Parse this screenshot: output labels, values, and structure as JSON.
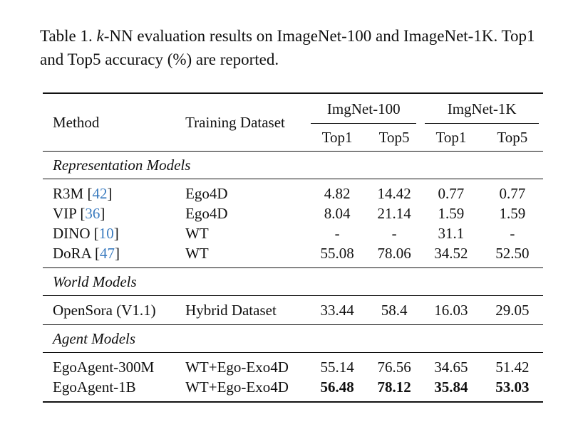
{
  "caption": {
    "prefix": "Table 1. ",
    "k": "k",
    "rest": "-NN evaluation results on ImageNet-100 and ImageNet-1K. Top1 and Top5 accuracy (%) are reported."
  },
  "headers": {
    "method": "Method",
    "training_dataset": "Training Dataset",
    "group1": "ImgNet-100",
    "group2": "ImgNet-1K",
    "top1": "Top1",
    "top5": "Top5"
  },
  "sections": [
    {
      "title": "Representation Models",
      "rows": [
        {
          "method": "R3M",
          "ref": "42",
          "dataset": "Ego4D",
          "v": [
            "4.82",
            "14.42",
            "0.77",
            "0.77"
          ]
        },
        {
          "method": "VIP",
          "ref": "36",
          "dataset": "Ego4D",
          "v": [
            "8.04",
            "21.14",
            "1.59",
            "1.59"
          ]
        },
        {
          "method": "DINO",
          "ref": "10",
          "dataset": "WT",
          "v": [
            "-",
            "-",
            "31.1",
            "-"
          ]
        },
        {
          "method": "DoRA",
          "ref": "47",
          "dataset": "WT",
          "v": [
            "55.08",
            "78.06",
            "34.52",
            "52.50"
          ]
        }
      ]
    },
    {
      "title": "World Models",
      "rows": [
        {
          "method": "OpenSora (V1.1)",
          "ref": "",
          "dataset": "Hybrid Dataset",
          "v": [
            "33.44",
            "58.4",
            "16.03",
            "29.05"
          ]
        }
      ]
    },
    {
      "title": "Agent Models",
      "rows": [
        {
          "method": "EgoAgent-300M",
          "ref": "",
          "dataset": "WT+Ego-Exo4D",
          "v": [
            "55.14",
            "76.56",
            "34.65",
            "51.42"
          ]
        },
        {
          "method": "EgoAgent-1B",
          "ref": "",
          "dataset": "WT+Ego-Exo4D",
          "v": [
            "56.48",
            "78.12",
            "35.84",
            "53.03"
          ],
          "bold": true
        }
      ]
    }
  ],
  "colors": {
    "ref_link": "#3a7bbf"
  }
}
